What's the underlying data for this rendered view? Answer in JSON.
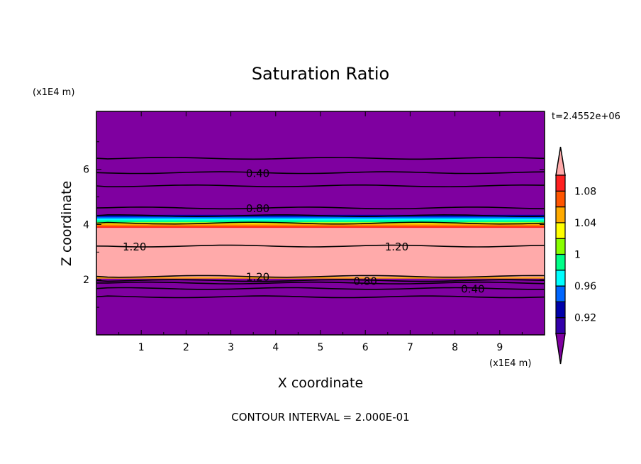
{
  "chart_data": {
    "type": "heatmap",
    "title": "Saturation Ratio",
    "xlabel": "X coordinate",
    "ylabel": "Z coordinate",
    "x_unit": "(x1E4 m)",
    "y_unit": "(x1E4 m)",
    "time_label": "t=2.4552e+06",
    "footer": "CONTOUR INTERVAL = 2.000E-01",
    "xlim": [
      0,
      10
    ],
    "ylim": [
      0,
      8.1
    ],
    "xticks": [
      "1",
      "2",
      "3",
      "4",
      "5",
      "6",
      "7",
      "8",
      "9"
    ],
    "yticks": [
      "2",
      "4",
      "6"
    ],
    "bands": [
      {
        "z0": 0,
        "z1": 8.1,
        "color": "#7f00a0"
      },
      {
        "z0": 4.1,
        "z1": 4.35,
        "color": "#0000aa"
      },
      {
        "z0": 4.08,
        "z1": 4.28,
        "color": "#0066ff"
      },
      {
        "z0": 4.05,
        "z1": 4.22,
        "color": "#00ffff"
      },
      {
        "z0": 4.02,
        "z1": 4.15,
        "color": "#00ff88"
      },
      {
        "z0": 3.98,
        "z1": 4.08,
        "color": "#ffff00"
      },
      {
        "z0": 3.93,
        "z1": 4.02,
        "color": "#ffaa00"
      },
      {
        "z0": 3.88,
        "z1": 3.97,
        "color": "#ff5500"
      },
      {
        "z0": 3.85,
        "z1": 3.92,
        "color": "#ff2020"
      },
      {
        "z0": 2.08,
        "z1": 3.88,
        "color": "#ffaaaa"
      },
      {
        "z0": 2.04,
        "z1": 2.09,
        "color": "#ffaa00"
      }
    ],
    "contours": [
      {
        "level": "0.40",
        "z": 5.88,
        "labeled": true
      },
      {
        "level": "",
        "z": 5.4,
        "labeled": false
      },
      {
        "level": "",
        "z": 6.4,
        "labeled": false
      },
      {
        "level": "0.80",
        "z": 4.6,
        "labeled": true
      },
      {
        "level": "",
        "z": 4.32,
        "labeled": false
      },
      {
        "level": "",
        "z": 4.05,
        "labeled": false
      },
      {
        "level": "1.20",
        "z": 3.22,
        "labeled": true
      },
      {
        "level": "1.20",
        "z": 2.12,
        "labeled": true
      },
      {
        "level": "0.80",
        "z": 1.97,
        "labeled": true
      },
      {
        "level": "",
        "z": 1.88,
        "labeled": false
      },
      {
        "level": "0.40",
        "z": 1.68,
        "labeled": true
      },
      {
        "level": "",
        "z": 1.38,
        "labeled": false
      }
    ],
    "colorbar": {
      "levels": [
        0.9,
        0.92,
        0.94,
        0.96,
        0.98,
        1.0,
        1.02,
        1.04,
        1.06,
        1.08,
        1.1
      ],
      "colors": [
        "#3300aa",
        "#0000aa",
        "#0066ff",
        "#00ffff",
        "#00ff88",
        "#88ff00",
        "#ffff00",
        "#ffaa00",
        "#ff5500",
        "#ff2020"
      ],
      "under_color": "#7f00a0",
      "over_color": "#ffaaaa",
      "tick_labels": [
        "0.92",
        "0.96",
        "1",
        "1.04",
        "1.08"
      ],
      "tick_values": [
        0.92,
        0.96,
        1.0,
        1.04,
        1.08
      ]
    }
  }
}
